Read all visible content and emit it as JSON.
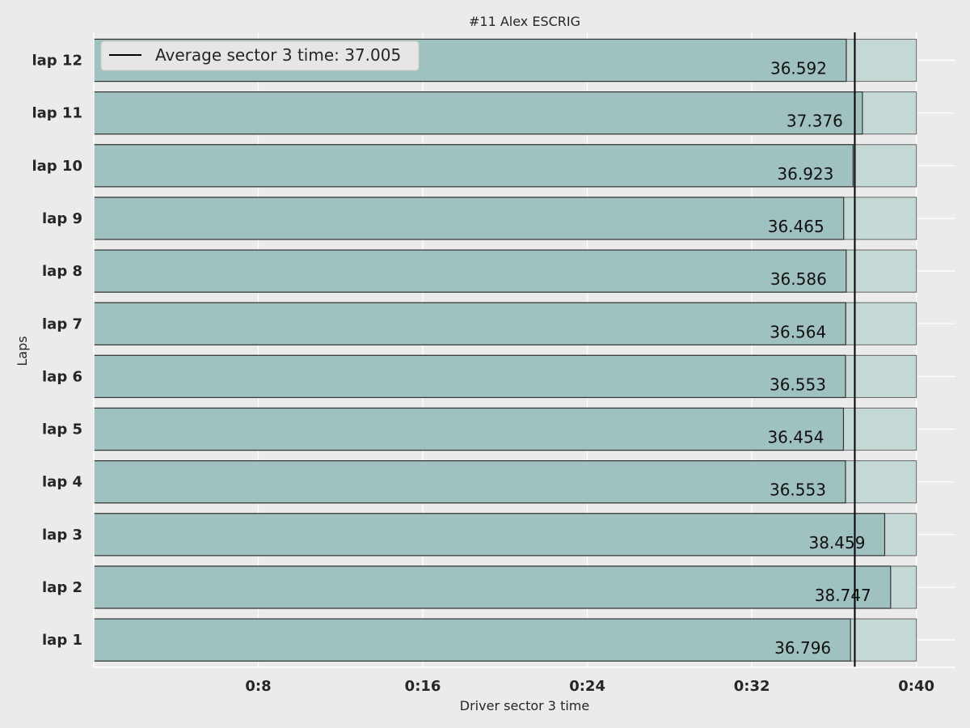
{
  "chart_data": {
    "type": "bar",
    "orientation": "horizontal",
    "title": "#11  Alex ESCRIG",
    "xlabel": "Driver sector 3 time",
    "ylabel": "Laps",
    "categories": [
      "lap 1",
      "lap 2",
      "lap 3",
      "lap 4",
      "lap 5",
      "lap 6",
      "lap 7",
      "lap 8",
      "lap 9",
      "lap 10",
      "lap 11",
      "lap 12"
    ],
    "values": [
      36.796,
      38.747,
      38.459,
      36.553,
      36.454,
      36.553,
      36.564,
      36.586,
      36.465,
      36.923,
      37.376,
      36.592
    ],
    "value_labels": [
      "36.796",
      "38.747",
      "38.459",
      "36.553",
      "36.454",
      "36.553",
      "36.564",
      "36.586",
      "36.465",
      "36.923",
      "37.376",
      "36.592"
    ],
    "background_bar_value": 40,
    "xlim": [
      0,
      41.9
    ],
    "xticks": [
      8,
      16,
      24,
      32,
      40
    ],
    "xtick_labels": [
      "0:8",
      "0:16",
      "0:24",
      "0:32",
      "0:40"
    ],
    "average_line": {
      "value": 37.005,
      "label": "Average sector 3 time: 37.005",
      "color": "#000000"
    },
    "legend_placement": "top-left",
    "grid": true,
    "colors": {
      "bar": "#9fc1bf",
      "bar_background": "#c4d8d6",
      "edge": "#333333",
      "background": "#ebebeb"
    }
  }
}
